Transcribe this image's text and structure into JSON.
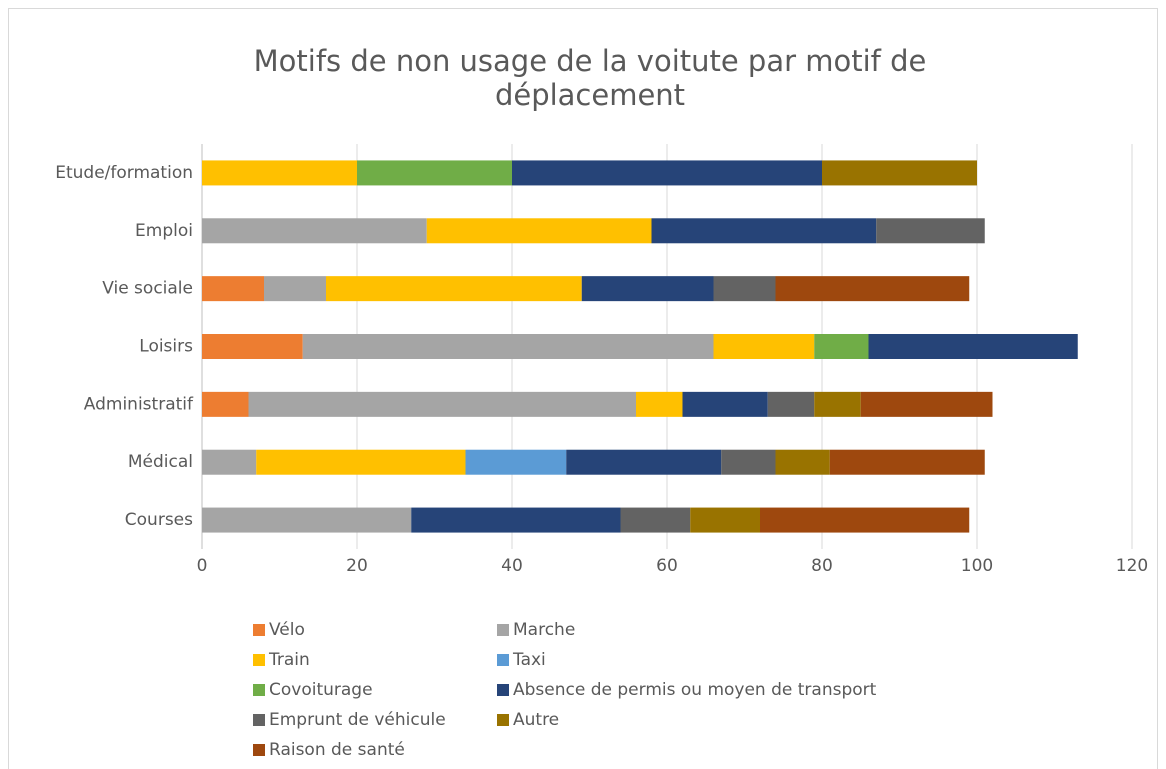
{
  "chart_data": {
    "type": "stacked_barh",
    "title": "Motifs de non usage de la voitute par motif de déplacement",
    "categories": [
      "Courses",
      "Médical",
      "Administratif",
      "Loisirs",
      "Vie sociale",
      "Emploi",
      "Etude/formation"
    ],
    "series": [
      {
        "name": "Vélo",
        "color": "#ed7d31",
        "values": [
          0,
          0,
          6,
          13,
          8,
          0,
          0
        ]
      },
      {
        "name": "Marche",
        "color": "#a5a5a5",
        "values": [
          27,
          7,
          50,
          53,
          8,
          29,
          0
        ]
      },
      {
        "name": "Train",
        "color": "#ffc000",
        "values": [
          0,
          27,
          6,
          13,
          33,
          29,
          20
        ]
      },
      {
        "name": "Taxi",
        "color": "#5b9bd5",
        "values": [
          0,
          13,
          0,
          0,
          0,
          0,
          0
        ]
      },
      {
        "name": "Covoiturage",
        "color": "#70ad47",
        "values": [
          0,
          0,
          0,
          7,
          0,
          0,
          20
        ]
      },
      {
        "name": "Absence de permis ou moyen de transport",
        "color": "#264478",
        "values": [
          27,
          20,
          11,
          27,
          17,
          29,
          40
        ]
      },
      {
        "name": "Emprunt de véhicule",
        "color": "#636363",
        "values": [
          9,
          7,
          6,
          0,
          8,
          14,
          0
        ]
      },
      {
        "name": "Autre",
        "color": "#997300",
        "values": [
          9,
          7,
          6,
          0,
          0,
          0,
          20
        ]
      },
      {
        "name": "Raison de santé",
        "color": "#9e480e",
        "values": [
          27,
          20,
          17,
          0,
          25,
          0,
          0
        ]
      }
    ],
    "xlim": [
      0,
      120
    ],
    "xticks": [
      0,
      20,
      40,
      60,
      80,
      100,
      120
    ],
    "grid": true,
    "legend": "bottom"
  }
}
